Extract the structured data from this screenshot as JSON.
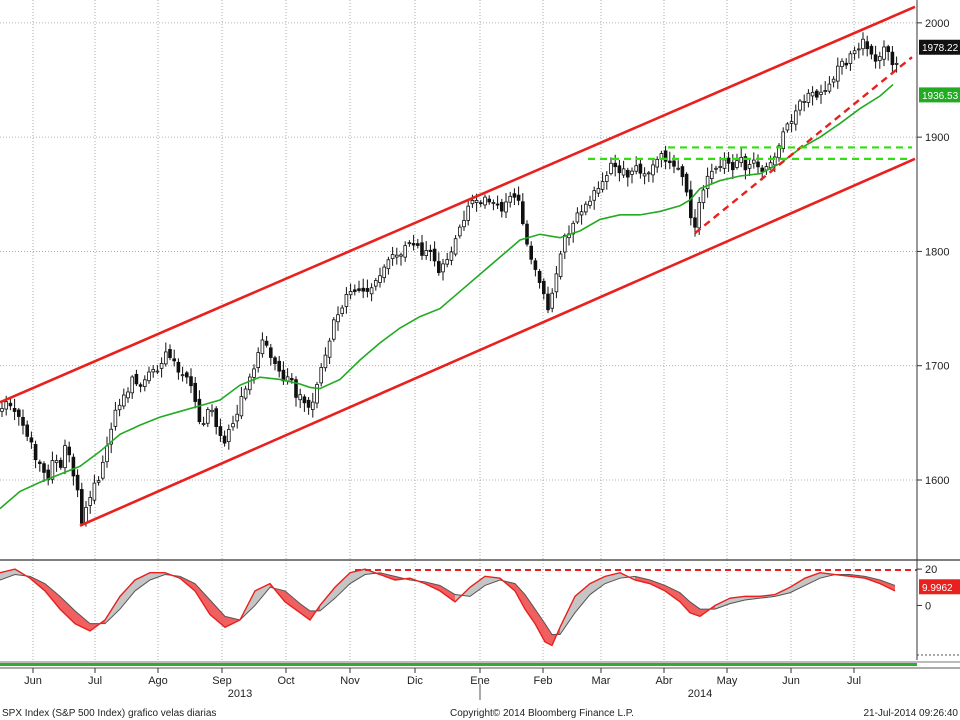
{
  "chart_data": {
    "type": "candlestick",
    "colors": {
      "channel": "#e8201e",
      "support": "#e8201e",
      "ma": "#22aa22",
      "resistance": "#33dd11",
      "candle": "#111111",
      "osc_line": "#e8201e",
      "osc_signal": "#555555",
      "osc_fill_red": "#ee4444",
      "osc_fill_grey": "#bbbbbb"
    },
    "x_labels": [
      "Jun",
      "Jul",
      "Ago",
      "Sep",
      "Oct",
      "Nov",
      "Dic",
      "Ene",
      "Feb",
      "Mar",
      "Abr",
      "May",
      "Jun",
      "Jul"
    ],
    "year_labels": [
      "2013",
      "2014"
    ],
    "y_ticks": [
      "1600",
      "1700",
      "1800",
      "1900",
      "2000"
    ],
    "ylim": [
      1530,
      2020
    ],
    "last_price_label": "1978.22",
    "ma_label": "1936.53",
    "close_points": [
      [
        0,
        1660
      ],
      [
        10,
        1670
      ],
      [
        18,
        1655
      ],
      [
        24,
        1645
      ],
      [
        30,
        1638
      ],
      [
        36,
        1615
      ],
      [
        42,
        1610
      ],
      [
        48,
        1600
      ],
      [
        54,
        1625
      ],
      [
        60,
        1610
      ],
      [
        66,
        1632
      ],
      [
        72,
        1615
      ],
      [
        78,
        1585
      ],
      [
        82,
        1562
      ],
      [
        86,
        1575
      ],
      [
        92,
        1593
      ],
      [
        98,
        1600
      ],
      [
        104,
        1615
      ],
      [
        110,
        1640
      ],
      [
        118,
        1665
      ],
      [
        126,
        1675
      ],
      [
        134,
        1690
      ],
      [
        142,
        1685
      ],
      [
        150,
        1700
      ],
      [
        158,
        1698
      ],
      [
        164,
        1710
      ],
      [
        170,
        1705
      ],
      [
        176,
        1700
      ],
      [
        182,
        1690
      ],
      [
        188,
        1690
      ],
      [
        194,
        1670
      ],
      [
        200,
        1650
      ],
      [
        206,
        1655
      ],
      [
        212,
        1665
      ],
      [
        218,
        1640
      ],
      [
        224,
        1630
      ],
      [
        232,
        1650
      ],
      [
        240,
        1665
      ],
      [
        248,
        1690
      ],
      [
        256,
        1700
      ],
      [
        264,
        1726
      ],
      [
        270,
        1712
      ],
      [
        276,
        1700
      ],
      [
        282,
        1690
      ],
      [
        290,
        1693
      ],
      [
        296,
        1672
      ],
      [
        302,
        1675
      ],
      [
        308,
        1658
      ],
      [
        314,
        1675
      ],
      [
        320,
        1695
      ],
      [
        326,
        1712
      ],
      [
        334,
        1738
      ],
      [
        342,
        1752
      ],
      [
        350,
        1763
      ],
      [
        358,
        1768
      ],
      [
        366,
        1763
      ],
      [
        374,
        1770
      ],
      [
        382,
        1780
      ],
      [
        390,
        1798
      ],
      [
        398,
        1795
      ],
      [
        406,
        1803
      ],
      [
        414,
        1808
      ],
      [
        422,
        1795
      ],
      [
        430,
        1800
      ],
      [
        438,
        1778
      ],
      [
        446,
        1790
      ],
      [
        454,
        1808
      ],
      [
        462,
        1828
      ],
      [
        470,
        1838
      ],
      [
        478,
        1848
      ],
      [
        486,
        1843
      ],
      [
        494,
        1840
      ],
      [
        502,
        1838
      ],
      [
        510,
        1845
      ],
      [
        518,
        1845
      ],
      [
        524,
        1818
      ],
      [
        530,
        1795
      ],
      [
        536,
        1778
      ],
      [
        542,
        1767
      ],
      [
        548,
        1745
      ],
      [
        554,
        1775
      ],
      [
        560,
        1795
      ],
      [
        566,
        1815
      ],
      [
        572,
        1822
      ],
      [
        580,
        1838
      ],
      [
        588,
        1842
      ],
      [
        596,
        1855
      ],
      [
        604,
        1865
      ],
      [
        612,
        1880
      ],
      [
        620,
        1872
      ],
      [
        628,
        1865
      ],
      [
        636,
        1878
      ],
      [
        644,
        1868
      ],
      [
        652,
        1872
      ],
      [
        660,
        1885
      ],
      [
        668,
        1872
      ],
      [
        676,
        1880
      ],
      [
        684,
        1860
      ],
      [
        688,
        1842
      ],
      [
        694,
        1820
      ],
      [
        698,
        1835
      ],
      [
        704,
        1860
      ],
      [
        710,
        1868
      ],
      [
        716,
        1872
      ],
      [
        724,
        1880
      ],
      [
        732,
        1875
      ],
      [
        740,
        1880
      ],
      [
        748,
        1870
      ],
      [
        756,
        1878
      ],
      [
        764,
        1872
      ],
      [
        772,
        1880
      ],
      [
        778,
        1895
      ],
      [
        786,
        1910
      ],
      [
        794,
        1920
      ],
      [
        802,
        1930
      ],
      [
        810,
        1945
      ],
      [
        818,
        1930
      ],
      [
        826,
        1945
      ],
      [
        834,
        1955
      ],
      [
        842,
        1962
      ],
      [
        850,
        1970
      ],
      [
        856,
        1975
      ],
      [
        862,
        1985
      ],
      [
        868,
        1975
      ],
      [
        874,
        1965
      ],
      [
        878,
        1970
      ],
      [
        884,
        1978
      ],
      [
        890,
        1972
      ],
      [
        894,
        1962
      ],
      [
        898,
        1960
      ]
    ],
    "ma_points": [
      [
        0,
        1575
      ],
      [
        20,
        1590
      ],
      [
        40,
        1598
      ],
      [
        60,
        1605
      ],
      [
        80,
        1612
      ],
      [
        100,
        1625
      ],
      [
        120,
        1640
      ],
      [
        140,
        1648
      ],
      [
        160,
        1655
      ],
      [
        180,
        1660
      ],
      [
        200,
        1665
      ],
      [
        220,
        1670
      ],
      [
        240,
        1683
      ],
      [
        260,
        1690
      ],
      [
        280,
        1688
      ],
      [
        300,
        1684
      ],
      [
        310,
        1681
      ],
      [
        320,
        1680
      ],
      [
        340,
        1688
      ],
      [
        360,
        1705
      ],
      [
        380,
        1720
      ],
      [
        400,
        1733
      ],
      [
        420,
        1743
      ],
      [
        440,
        1750
      ],
      [
        460,
        1765
      ],
      [
        480,
        1780
      ],
      [
        500,
        1795
      ],
      [
        520,
        1810
      ],
      [
        540,
        1815
      ],
      [
        560,
        1812
      ],
      [
        580,
        1818
      ],
      [
        600,
        1828
      ],
      [
        620,
        1832
      ],
      [
        640,
        1832
      ],
      [
        660,
        1835
      ],
      [
        680,
        1840
      ],
      [
        690,
        1845
      ],
      [
        700,
        1855
      ],
      [
        720,
        1862
      ],
      [
        740,
        1866
      ],
      [
        760,
        1868
      ],
      [
        780,
        1877
      ],
      [
        800,
        1890
      ],
      [
        820,
        1900
      ],
      [
        840,
        1912
      ],
      [
        860,
        1925
      ],
      [
        880,
        1936
      ],
      [
        893,
        1946
      ]
    ],
    "upper_channel": [
      [
        0,
        1668
      ],
      [
        915,
        2014
      ]
    ],
    "lower_channel": [
      [
        80,
        1560
      ],
      [
        915,
        1881
      ]
    ],
    "support_trend": [
      [
        695,
        1816
      ],
      [
        912,
        1970
      ]
    ],
    "resistance_levels": [
      {
        "from": 668,
        "to": 912,
        "value": 1891
      },
      {
        "from": 588,
        "to": 912,
        "value": 1881
      }
    ],
    "oscillator": {
      "ylim": [
        -30,
        25
      ],
      "y_ticks": [
        "20",
        "0"
      ],
      "last_label": "9.9962",
      "ref_level": 19.5,
      "ref_from": 355,
      "line": [
        [
          0,
          18
        ],
        [
          15,
          20
        ],
        [
          30,
          15
        ],
        [
          45,
          8
        ],
        [
          60,
          -2
        ],
        [
          75,
          -10
        ],
        [
          90,
          -14
        ],
        [
          105,
          -8
        ],
        [
          120,
          5
        ],
        [
          135,
          14
        ],
        [
          150,
          18
        ],
        [
          165,
          18
        ],
        [
          180,
          15
        ],
        [
          195,
          8
        ],
        [
          210,
          -5
        ],
        [
          225,
          -12
        ],
        [
          240,
          -8
        ],
        [
          255,
          8
        ],
        [
          270,
          12
        ],
        [
          285,
          2
        ],
        [
          300,
          -4
        ],
        [
          310,
          -8
        ],
        [
          320,
          0
        ],
        [
          335,
          10
        ],
        [
          350,
          18
        ],
        [
          365,
          20
        ],
        [
          380,
          17
        ],
        [
          395,
          14
        ],
        [
          410,
          15
        ],
        [
          425,
          12
        ],
        [
          440,
          8
        ],
        [
          455,
          2
        ],
        [
          470,
          10
        ],
        [
          485,
          16
        ],
        [
          500,
          15
        ],
        [
          515,
          8
        ],
        [
          525,
          -2
        ],
        [
          535,
          -10
        ],
        [
          545,
          -20
        ],
        [
          552,
          -22
        ],
        [
          560,
          -12
        ],
        [
          575,
          5
        ],
        [
          590,
          12
        ],
        [
          605,
          16
        ],
        [
          620,
          18
        ],
        [
          635,
          14
        ],
        [
          650,
          12
        ],
        [
          665,
          8
        ],
        [
          680,
          2
        ],
        [
          690,
          -4
        ],
        [
          700,
          -6
        ],
        [
          715,
          0
        ],
        [
          730,
          4
        ],
        [
          745,
          5
        ],
        [
          760,
          5
        ],
        [
          775,
          6
        ],
        [
          790,
          10
        ],
        [
          805,
          15
        ],
        [
          820,
          18
        ],
        [
          835,
          17
        ],
        [
          850,
          16
        ],
        [
          865,
          15
        ],
        [
          880,
          12
        ],
        [
          895,
          8
        ]
      ],
      "signal": [
        [
          0,
          14
        ],
        [
          15,
          17
        ],
        [
          30,
          16
        ],
        [
          45,
          12
        ],
        [
          60,
          5
        ],
        [
          75,
          -3
        ],
        [
          90,
          -10
        ],
        [
          105,
          -10
        ],
        [
          120,
          -2
        ],
        [
          135,
          8
        ],
        [
          150,
          14
        ],
        [
          165,
          17
        ],
        [
          180,
          16
        ],
        [
          195,
          12
        ],
        [
          210,
          3
        ],
        [
          225,
          -6
        ],
        [
          240,
          -8
        ],
        [
          255,
          0
        ],
        [
          270,
          10
        ],
        [
          285,
          8
        ],
        [
          300,
          1
        ],
        [
          310,
          -3
        ],
        [
          320,
          -3
        ],
        [
          335,
          4
        ],
        [
          350,
          12
        ],
        [
          365,
          17
        ],
        [
          380,
          18
        ],
        [
          395,
          16
        ],
        [
          410,
          14
        ],
        [
          425,
          13
        ],
        [
          440,
          11
        ],
        [
          455,
          6
        ],
        [
          470,
          5
        ],
        [
          485,
          11
        ],
        [
          500,
          14
        ],
        [
          515,
          12
        ],
        [
          525,
          6
        ],
        [
          535,
          -2
        ],
        [
          545,
          -10
        ],
        [
          552,
          -16
        ],
        [
          560,
          -16
        ],
        [
          575,
          -4
        ],
        [
          590,
          6
        ],
        [
          605,
          12
        ],
        [
          620,
          15
        ],
        [
          635,
          16
        ],
        [
          650,
          14
        ],
        [
          665,
          11
        ],
        [
          680,
          7
        ],
        [
          690,
          2
        ],
        [
          700,
          -2
        ],
        [
          715,
          -2
        ],
        [
          730,
          1
        ],
        [
          745,
          3
        ],
        [
          760,
          4
        ],
        [
          775,
          5
        ],
        [
          790,
          7
        ],
        [
          805,
          11
        ],
        [
          820,
          15
        ],
        [
          835,
          17
        ],
        [
          850,
          17
        ],
        [
          865,
          16
        ],
        [
          880,
          14
        ],
        [
          895,
          11
        ]
      ]
    }
  },
  "footer": {
    "left": "SPX Index (S&P 500 Index) grafico velas diarias",
    "center": "Copyright© 2014 Bloomberg Finance L.P.",
    "right": "21-Jul-2014 09:26:40"
  }
}
